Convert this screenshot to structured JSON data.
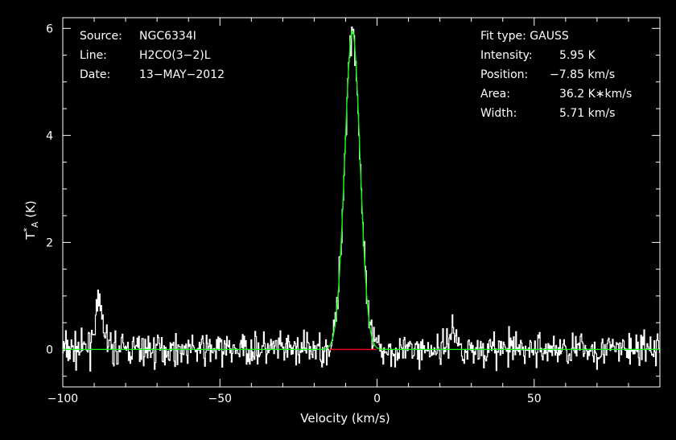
{
  "header_left": [
    {
      "key": "Source:",
      "value": "NGC6334I"
    },
    {
      "key": "Line:",
      "value": "H2CO(3−2)L"
    },
    {
      "key": "Date:",
      "value": "13−MAY−2012"
    }
  ],
  "fit": {
    "title": "Fit type: GAUSS",
    "rows": [
      {
        "key": "Intensity:",
        "value": "5.95 K"
      },
      {
        "key": "Position:",
        "value": "−7.85 km/s"
      },
      {
        "key": "Area:",
        "value": "36.2 K∗km/s"
      },
      {
        "key": "Width:",
        "value": "5.71 km/s"
      }
    ]
  },
  "colors": {
    "background": "#000000",
    "axes": "#ffffff",
    "data": "#ffffff",
    "fit": "#00ff00",
    "fit_core": "#ff0000"
  },
  "chart_data": {
    "type": "line",
    "xlabel": "Velocity (km/s)",
    "ylabel": "T*A (K)",
    "xlim": [
      -100,
      90
    ],
    "ylim": [
      -0.7,
      6.2
    ],
    "xticks": [
      -100,
      -50,
      0,
      50
    ],
    "xtick_labels": [
      "−100",
      "−50",
      "0",
      "50"
    ],
    "yticks": [
      0,
      2,
      4,
      6
    ],
    "ytick_labels": [
      "0",
      "2",
      "4",
      "6"
    ],
    "grid": false,
    "series": [
      {
        "x_start": -100,
        "x_step": 0.25,
        "noise_rms": 0.15,
        "seed": 7,
        "features": [
          {
            "center": -88.5,
            "amplitude": 0.75,
            "width": 3.5
          },
          {
            "center": -7.85,
            "amplitude": 5.95,
            "width": 5.71
          },
          {
            "center": 24,
            "amplitude": 0.35,
            "width": 3
          }
        ]
      },
      {
        "amplitude": 5.95,
        "center": -7.85,
        "width": 5.71,
        "baseline_range": [
          -100,
          90
        ],
        "highlight_range": [
          -15,
          0
        ]
      }
    ]
  }
}
